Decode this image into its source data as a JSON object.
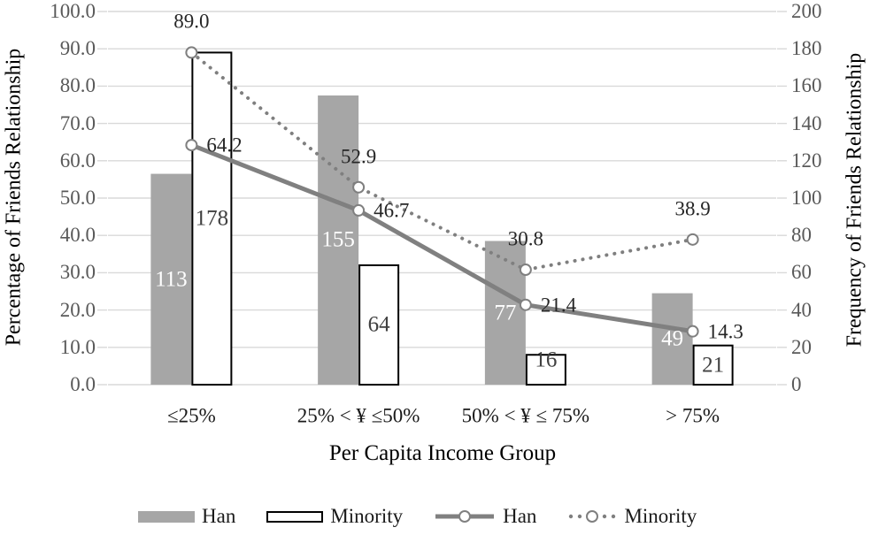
{
  "chart_data": {
    "type": "bar",
    "subtype": "combo-bar-line-dual-axis",
    "categories": [
      "≤25%",
      "25% < ¥ ≤50%",
      "50% < ¥ ≤ 75%",
      "> 75%"
    ],
    "x_axis": {
      "title": "Per Capita Income Group"
    },
    "left_axis": {
      "title": "Percentage of Friends Relationship",
      "min": 0,
      "max": 100,
      "step": 10,
      "tick_labels": [
        "0.0",
        "10.0",
        "20.0",
        "30.0",
        "40.0",
        "50.0",
        "60.0",
        "70.0",
        "80.0",
        "90.0",
        "100.0"
      ]
    },
    "right_axis": {
      "title": "Frequency of Friends Relationship",
      "min": 0,
      "max": 200,
      "step": 20,
      "tick_labels": [
        "0",
        "20",
        "40",
        "60",
        "80",
        "100",
        "120",
        "140",
        "160",
        "180",
        "200"
      ]
    },
    "bar_series": [
      {
        "name": "Han",
        "axis": "right",
        "values": [
          113,
          155,
          77,
          49
        ],
        "value_labels": [
          "113",
          "155",
          "77",
          "49"
        ],
        "style": "gray-filled"
      },
      {
        "name": "Minority",
        "axis": "right",
        "values": [
          178,
          64,
          16,
          21
        ],
        "value_labels": [
          "178",
          "64",
          "16",
          "21"
        ],
        "style": "white-black-border"
      }
    ],
    "line_series": [
      {
        "name": "Han",
        "axis": "left",
        "values": [
          64.2,
          46.7,
          21.4,
          14.3
        ],
        "value_labels": [
          "64.2",
          "46.7",
          "21.4",
          "14.3"
        ],
        "style": "solid-circle-marker"
      },
      {
        "name": "Minority",
        "axis": "left",
        "values": [
          89.0,
          52.9,
          30.8,
          38.9
        ],
        "value_labels": [
          "89.0",
          "52.9",
          "30.8",
          "38.9"
        ],
        "style": "dotted-circle-marker"
      }
    ],
    "legend": [
      {
        "label": "Han",
        "swatch": "gray-bar"
      },
      {
        "label": "Minority",
        "swatch": "white-bar"
      },
      {
        "label": "Han",
        "swatch": "solid-line"
      },
      {
        "label": "Minority",
        "swatch": "dotted-line"
      }
    ],
    "layout_hints": {
      "grid": "horizontal",
      "legend_position": "bottom"
    },
    "colors": {
      "han_bar_fill": "#a6a6a6",
      "minority_bar_fill": "#ffffff",
      "minority_bar_border": "#000000",
      "line_gray": "#808080",
      "dotted_gray": "#7f7f7f",
      "gridline": "#d9d9d9",
      "tick_text": "#595959",
      "data_label_text": "#262626",
      "han_bar_label": "#ffffff",
      "minority_bar_label": "#404040"
    }
  }
}
